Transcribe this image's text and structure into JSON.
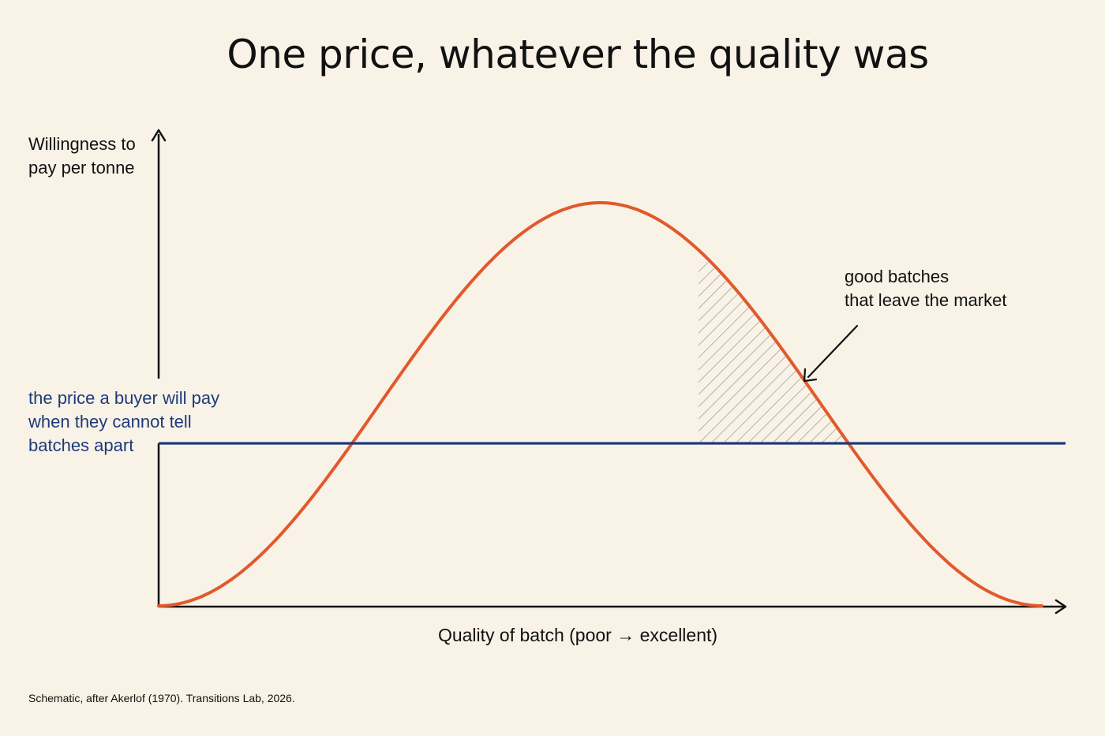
{
  "title": "One price, whatever the quality was",
  "y_axis_label": "Willingness to\npay per tonne",
  "x_axis_label": "Quality of batch (poor → excellent)",
  "price_line_label": "the price a buyer will pay\nwhen they cannot tell\nbatches apart",
  "annotation": "good batches\nthat leave the market",
  "caption": "Schematic, after Akerlof (1970). Transitions Lab, 2026.",
  "colors": {
    "background": "#f8f2e7",
    "curve": "#e2592b",
    "price_line": "#1f3a7a",
    "axis": "#111111",
    "hatch": "#9a958c"
  }
}
